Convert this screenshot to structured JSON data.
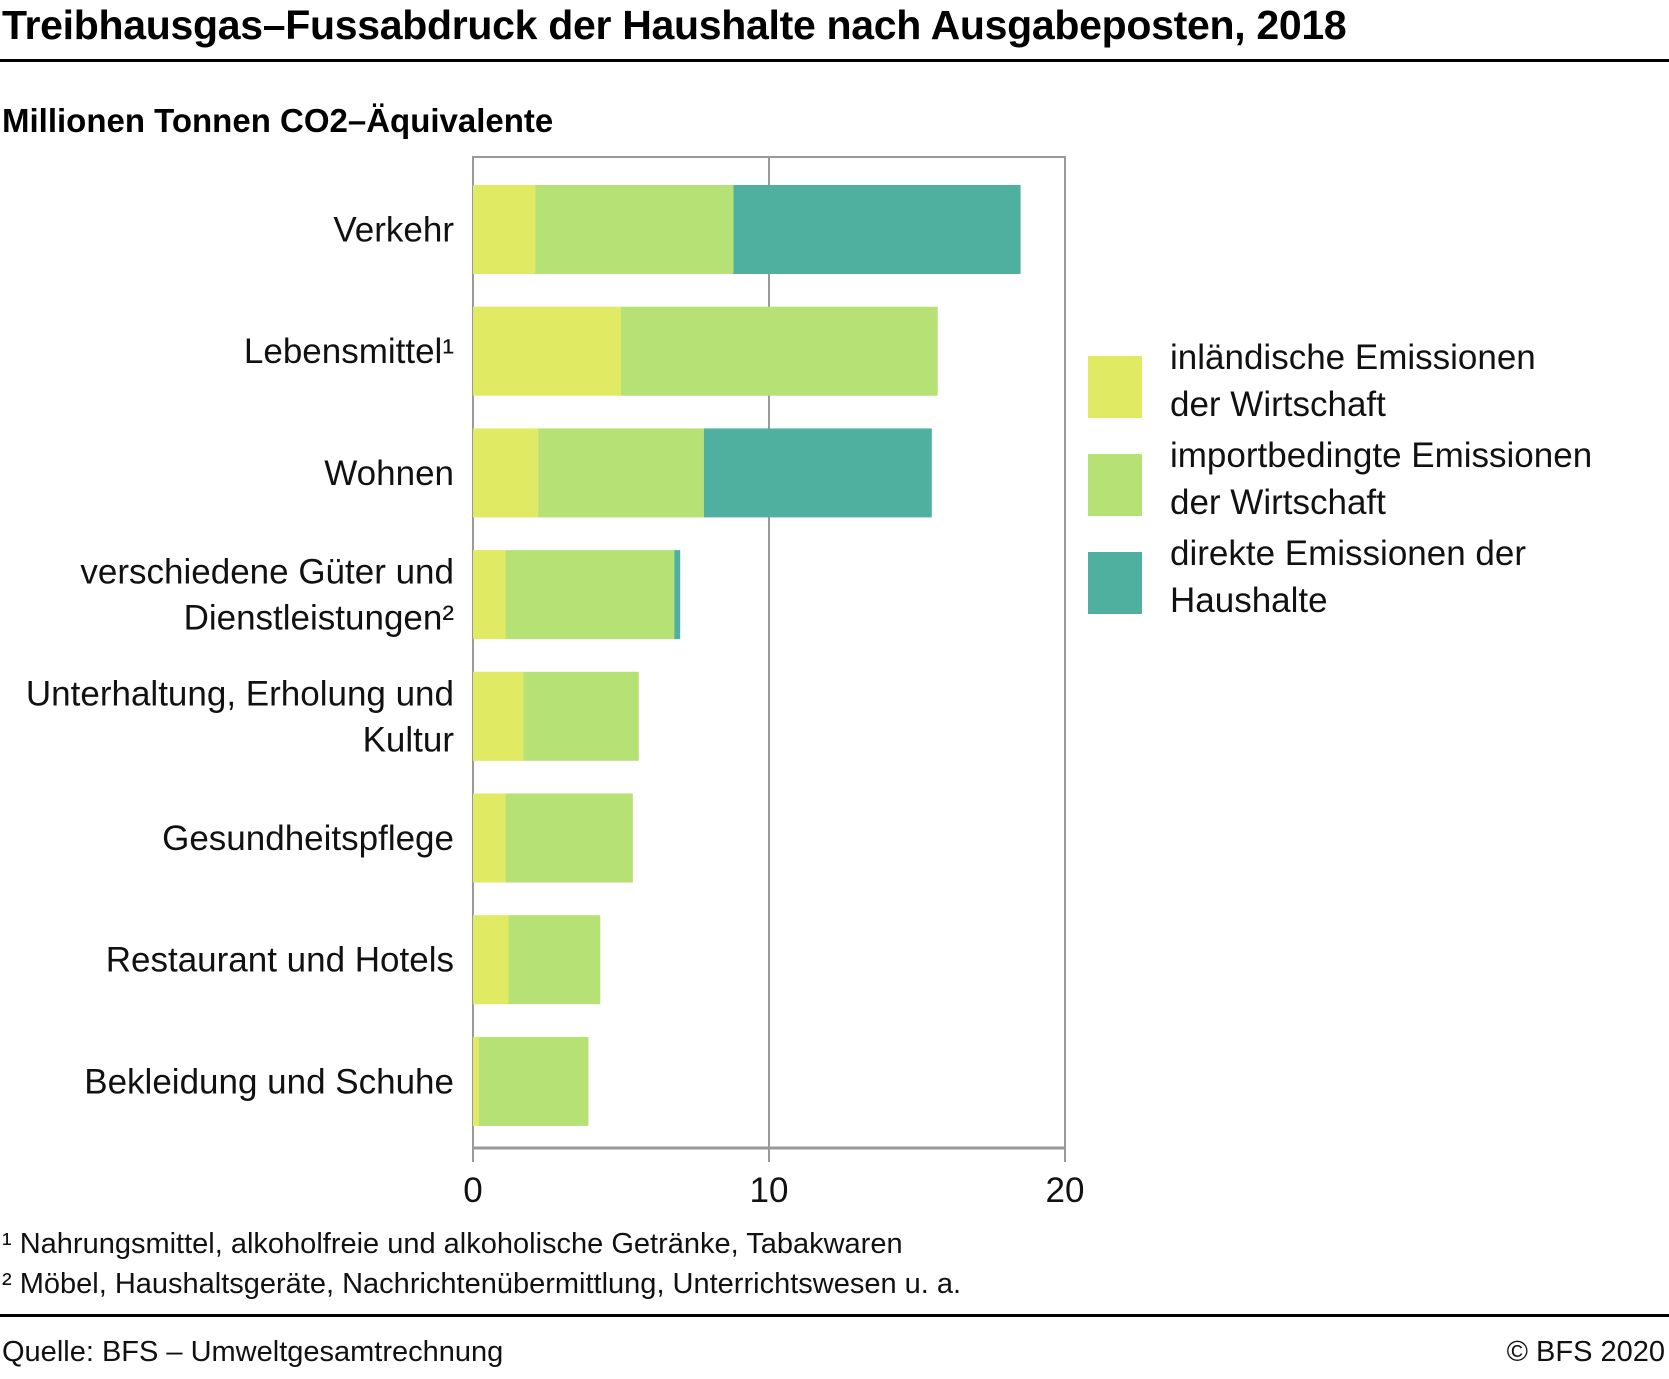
{
  "header": {
    "title": "Treibhausgas–Fussabdruck der Haushalte nach Ausgabeposten, 2018",
    "subtitle": "Millionen Tonnen CO2–Äquivalente"
  },
  "colors": {
    "inlaendisch": "#e0ea62",
    "importbedingt": "#b6e174",
    "direkt": "#4fb0a0",
    "grid": "#999999"
  },
  "legend": [
    {
      "label_line1": "inländische Emissionen",
      "label_line2": "der Wirtschaft",
      "color": "#e0ea62"
    },
    {
      "label_line1": "importbedingte Emissionen",
      "label_line2": "der Wirtschaft",
      "color": "#b6e174"
    },
    {
      "label_line1": "direkte Emissionen der",
      "label_line2": "Haushalte",
      "color": "#4fb0a0"
    }
  ],
  "chart_data": {
    "type": "bar",
    "orientation": "horizontal",
    "stacked": true,
    "title": "Treibhausgas–Fussabdruck der Haushalte nach Ausgabeposten, 2018",
    "subtitle": "Millionen Tonnen CO2–Äquivalente",
    "xlabel": "",
    "ylabel": "",
    "xlim": [
      0,
      20
    ],
    "xticks": [
      0,
      10,
      20
    ],
    "grid": true,
    "legend_position": "right",
    "categories": [
      [
        "Verkehr"
      ],
      [
        "Lebensmittel¹"
      ],
      [
        "Wohnen"
      ],
      [
        "verschiedene Güter und",
        "Dienstleistungen²"
      ],
      [
        "Unterhaltung, Erholung und",
        "Kultur"
      ],
      [
        "Gesundheitspflege"
      ],
      [
        "Restaurant und Hotels"
      ],
      [
        "Bekleidung und Schuhe"
      ]
    ],
    "series": [
      {
        "name": "inländische Emissionen der Wirtschaft",
        "color": "#e0ea62",
        "values": [
          2.1,
          5.0,
          2.2,
          1.1,
          1.7,
          1.1,
          1.2,
          0.2
        ]
      },
      {
        "name": "importbedingte Emissionen der Wirtschaft",
        "color": "#b6e174",
        "values": [
          6.7,
          10.7,
          5.6,
          5.7,
          3.9,
          4.3,
          3.1,
          3.7
        ]
      },
      {
        "name": "direkte Emissionen der Haushalte",
        "color": "#4fb0a0",
        "values": [
          9.7,
          0,
          7.7,
          0.2,
          0,
          0,
          0,
          0
        ]
      }
    ]
  },
  "footnotes": [
    "¹ Nahrungsmittel, alkoholfreie und alkoholische Getränke, Tabakwaren",
    "² Möbel, Haushaltsgeräte, Nachrichtenübermittlung, Unterrichtswesen u. a."
  ],
  "footer": {
    "source": "Quelle: BFS – Umweltgesamtrechnung",
    "copyright": "© BFS 2020"
  }
}
